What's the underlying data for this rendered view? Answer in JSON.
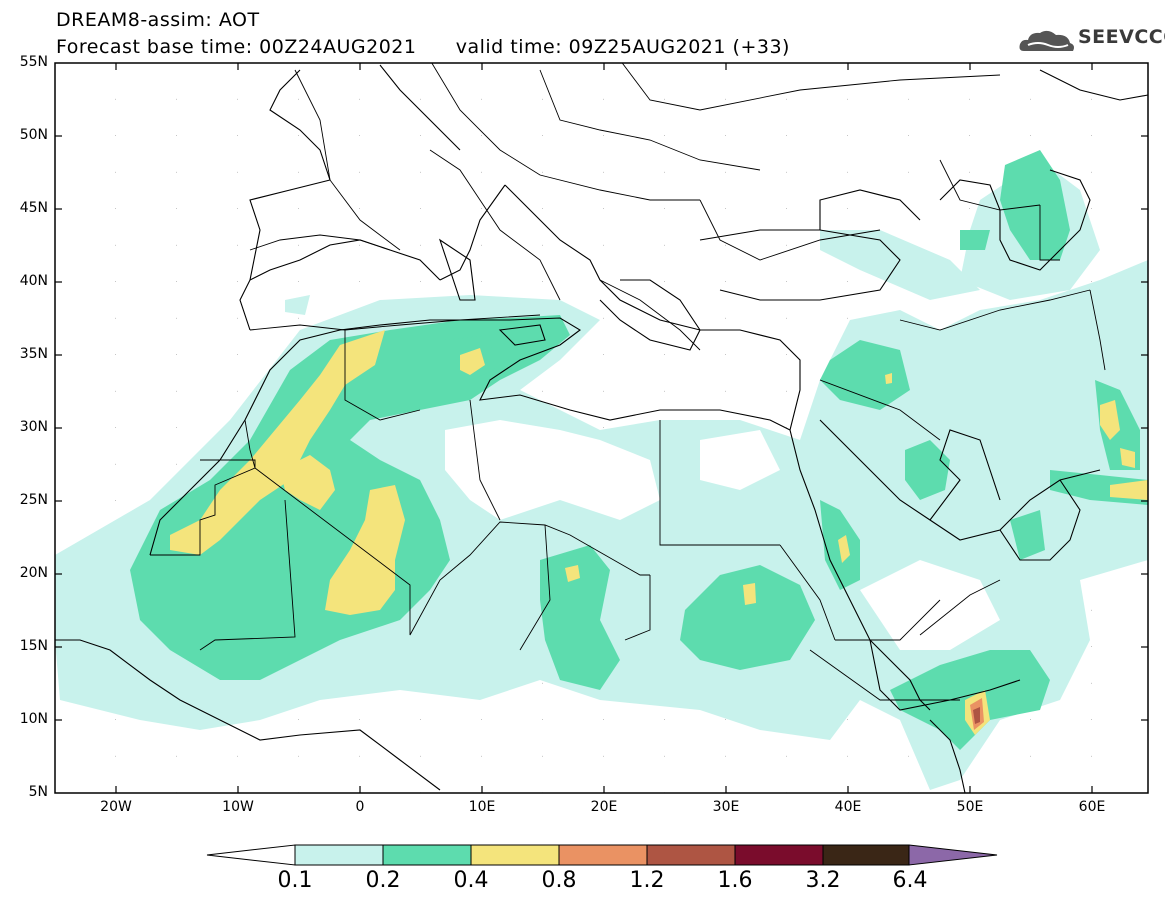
{
  "header": {
    "line1": "DREAM8-assim: AOT",
    "line2": "Forecast base time: 00Z24AUG2021      valid time: 09Z25AUG2021 (+33)"
  },
  "logo": {
    "text": "SEEVCCC",
    "icon": "cloud-icon"
  },
  "map": {
    "lat_labels": [
      "55N",
      "50N",
      "45N",
      "40N",
      "35N",
      "30N",
      "25N",
      "20N",
      "15N",
      "10N",
      "5N"
    ],
    "lon_labels": [
      "20W",
      "10W",
      "0",
      "10E",
      "20E",
      "30E",
      "40E",
      "50E",
      "60E"
    ],
    "lon_range": [
      -25,
      65
    ],
    "lat_range": [
      5,
      55
    ]
  },
  "colorbar": {
    "labels": [
      "0.1",
      "0.2",
      "0.4",
      "0.8",
      "1.2",
      "1.6",
      "3.2",
      "6.4"
    ],
    "colors": [
      "#ffffff",
      "#c8f2ec",
      "#5ddcae",
      "#f4e47c",
      "#ea9263",
      "#ae5543",
      "#7a0c2c",
      "#3a2616",
      "#8c68a8"
    ]
  }
}
